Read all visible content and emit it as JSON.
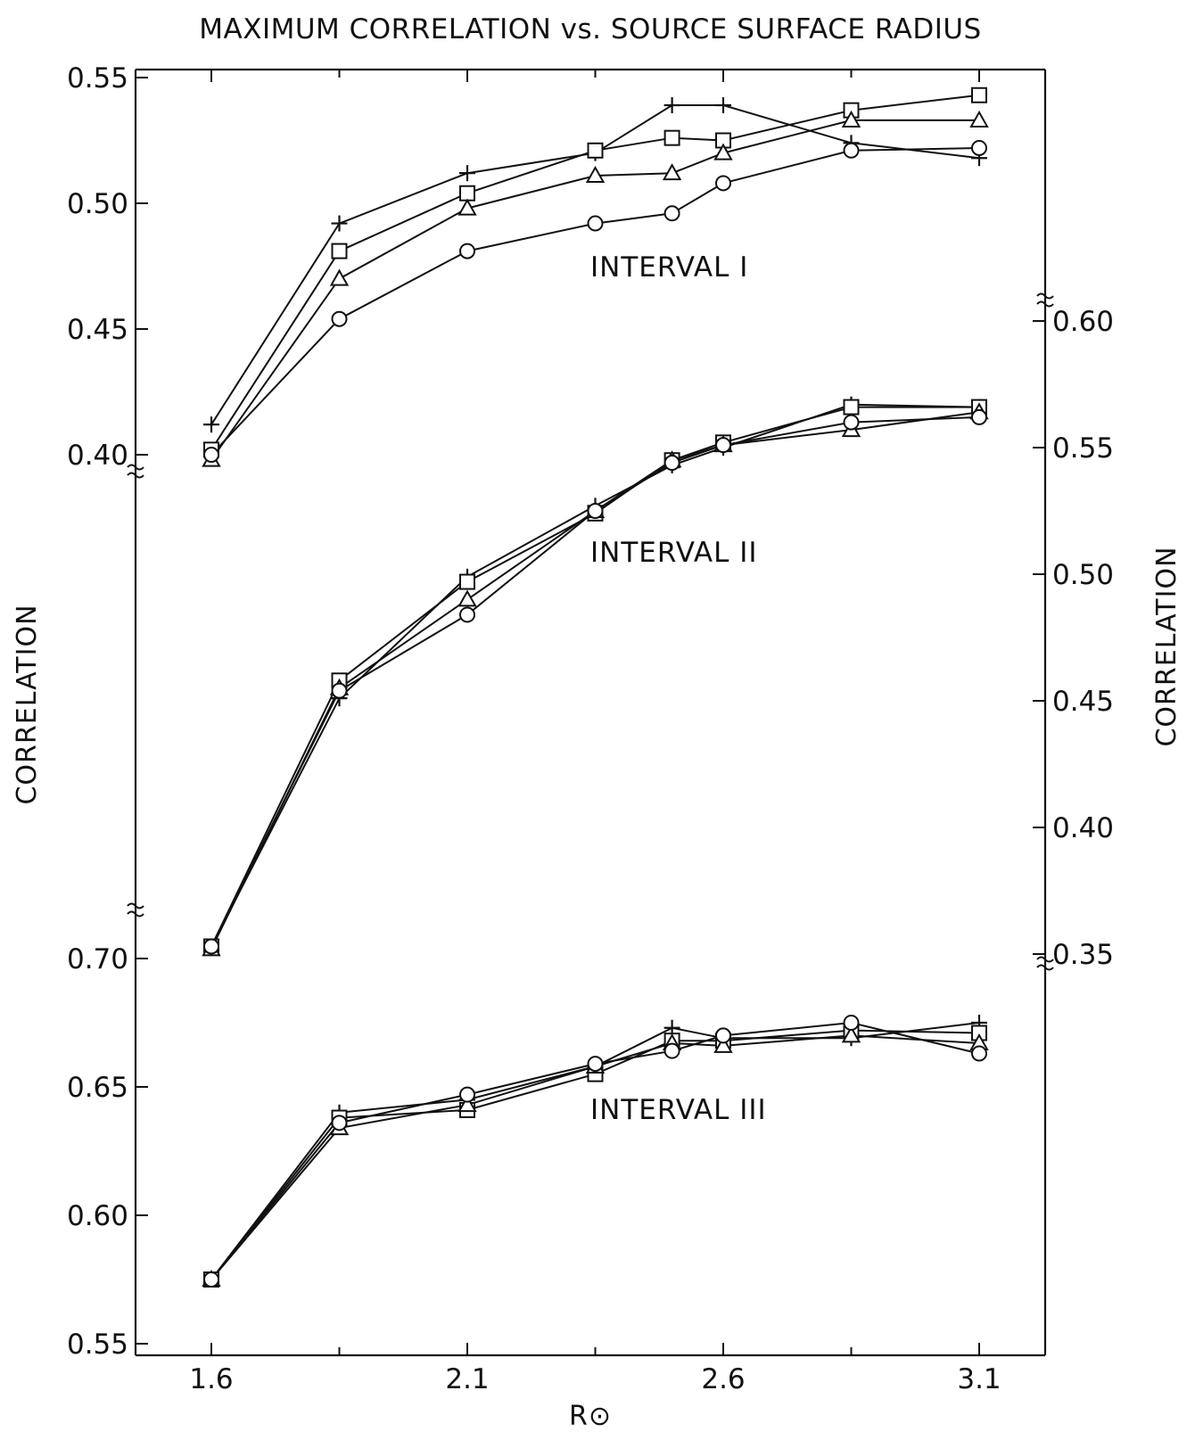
{
  "chart_data": {
    "type": "line",
    "title": "MAXIMUM CORRELATION vs. SOURCE SURFACE RADIUS",
    "xlabel": "R⊙",
    "x_ticks": [
      "1.6",
      "2.1",
      "2.6",
      "3.1"
    ],
    "xlim": [
      1.6,
      3.1
    ],
    "ylabel_left": "CORRELATION",
    "ylabel_right": "CORRELATION",
    "grid": false,
    "marker_symbols": [
      "+",
      "□",
      "△",
      "○"
    ],
    "panels": [
      {
        "label": "INTERVAL I",
        "axis": "left",
        "ylim": [
          0.4,
          0.55
        ],
        "y_ticks": [
          "0.55",
          "0.50",
          "0.45",
          "0.40"
        ],
        "x": [
          1.6,
          1.85,
          2.1,
          2.35,
          2.5,
          2.6,
          2.85,
          3.1
        ],
        "series": [
          {
            "marker": "+",
            "values": [
              0.412,
              0.492,
              0.512,
              0.52,
              0.539,
              0.539,
              0.524,
              0.518
            ]
          },
          {
            "marker": "□",
            "values": [
              0.402,
              0.481,
              0.504,
              0.521,
              0.526,
              0.525,
              0.537,
              0.543
            ]
          },
          {
            "marker": "△",
            "values": [
              0.398,
              0.47,
              0.498,
              0.511,
              0.512,
              0.52,
              0.533,
              0.533
            ]
          },
          {
            "marker": "○",
            "values": [
              0.4,
              0.454,
              0.481,
              0.492,
              0.496,
              0.508,
              0.521,
              0.522
            ]
          }
        ]
      },
      {
        "label": "INTERVAL II",
        "axis": "right",
        "ylim": [
          0.35,
          0.6
        ],
        "y_ticks": [
          "0.60",
          "0.55",
          "0.50",
          "0.45",
          "0.40",
          "0.35"
        ],
        "x": [
          1.6,
          1.85,
          2.1,
          2.35,
          2.5,
          2.6,
          2.85,
          3.1
        ],
        "series": [
          {
            "marker": "+",
            "values": [
              0.353,
              0.451,
              0.499,
              0.527,
              0.543,
              0.55,
              0.567,
              0.566
            ]
          },
          {
            "marker": "□",
            "values": [
              0.353,
              0.458,
              0.497,
              0.524,
              0.545,
              0.552,
              0.566,
              0.566
            ]
          },
          {
            "marker": "△",
            "values": [
              0.352,
              0.455,
              0.49,
              0.525,
              0.545,
              0.551,
              0.557,
              0.564
            ]
          },
          {
            "marker": "○",
            "values": [
              0.353,
              0.454,
              0.484,
              0.525,
              0.544,
              0.551,
              0.56,
              0.562
            ]
          }
        ]
      },
      {
        "label": "INTERVAL III",
        "axis": "left",
        "ylim": [
          0.55,
          0.7
        ],
        "y_ticks": [
          "0.70",
          "0.65",
          "0.60",
          "0.55"
        ],
        "x": [
          1.6,
          1.85,
          2.1,
          2.35,
          2.5,
          2.6,
          2.85,
          3.1
        ],
        "series": [
          {
            "marker": "+",
            "values": [
              0.575,
              0.64,
              0.645,
              0.658,
              0.673,
              0.669,
              0.669,
              0.675
            ]
          },
          {
            "marker": "□",
            "values": [
              0.575,
              0.638,
              0.641,
              0.655,
              0.668,
              0.668,
              0.672,
              0.671
            ]
          },
          {
            "marker": "△",
            "values": [
              0.575,
              0.634,
              0.643,
              0.658,
              0.667,
              0.666,
              0.67,
              0.667
            ]
          },
          {
            "marker": "○",
            "values": [
              0.575,
              0.636,
              0.647,
              0.659,
              0.664,
              0.67,
              0.675,
              0.663
            ]
          }
        ]
      }
    ]
  }
}
